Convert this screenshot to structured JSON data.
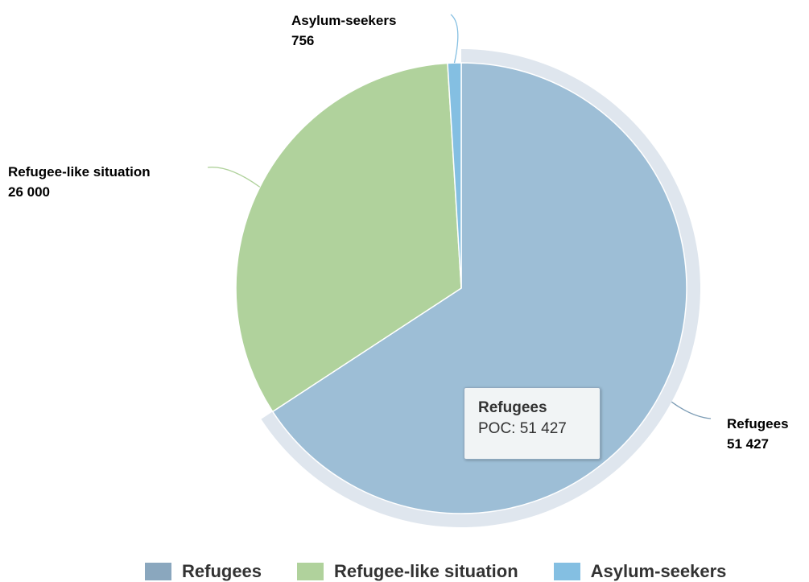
{
  "chart_data": {
    "type": "pie",
    "title": "",
    "slices": [
      {
        "label": "Refugees",
        "value": 51427,
        "display_value": "51 427",
        "color": "#9dbed6",
        "legend_color": "#8aa7be"
      },
      {
        "label": "Refugee-like situation",
        "value": 26000,
        "display_value": "26 000",
        "color": "#b0d29c",
        "legend_color": "#b0d29c"
      },
      {
        "label": "Asylum-seekers",
        "value": 756,
        "display_value": "756",
        "color": "#84bfe2",
        "legend_color": "#84bfe2"
      }
    ],
    "highlighted_slice": "Refugees",
    "legend_position": "bottom"
  },
  "tooltip": {
    "title": "Refugees",
    "value_text": "POC: 51 427"
  },
  "colors": {
    "hover_halo": "#dfe6ee",
    "slice_border": "#ffffff"
  }
}
